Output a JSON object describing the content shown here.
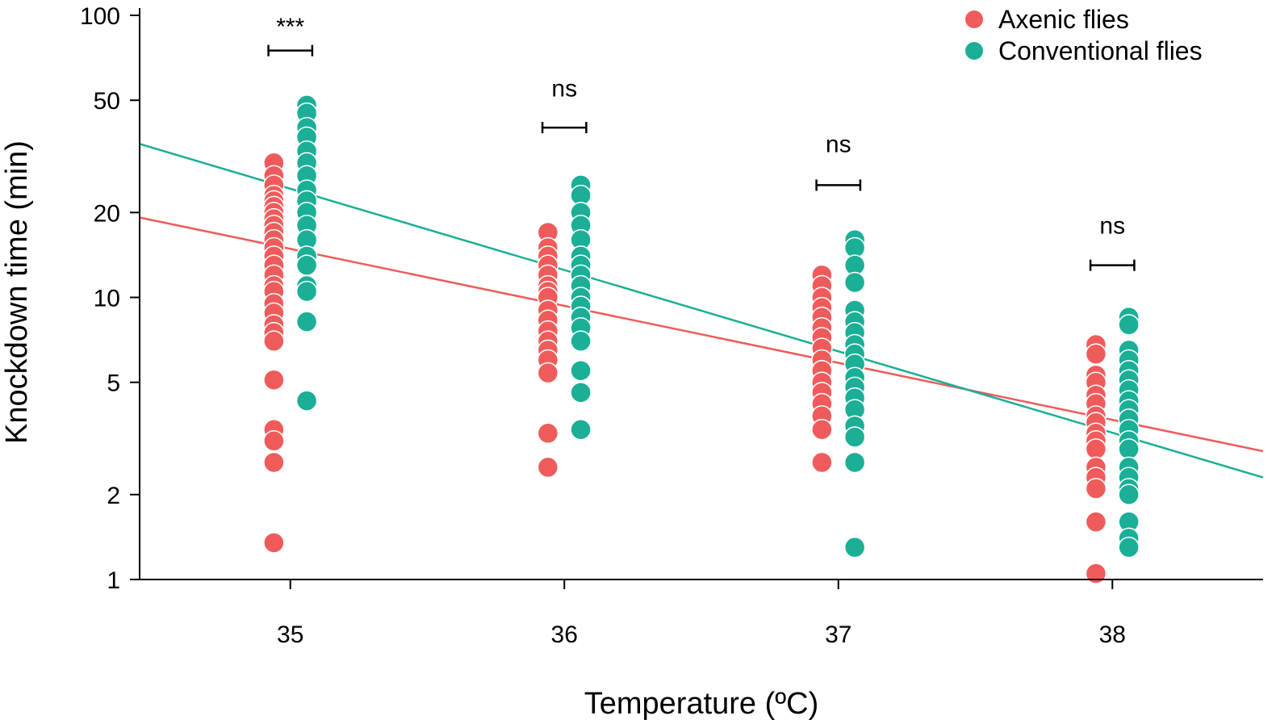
{
  "chart_data": {
    "type": "scatter",
    "title": "",
    "xlabel": "Temperature (ºC)",
    "ylabel": "Knockdown time (min)",
    "yscale": "log",
    "ylim": [
      1,
      100
    ],
    "xlim": [
      34.45,
      38.55
    ],
    "xticks": [
      35,
      36,
      37,
      38
    ],
    "yticks": [
      1,
      2,
      5,
      10,
      20,
      50,
      100
    ],
    "legend_position": "top-right",
    "series": [
      {
        "name": "Axenic flies",
        "color": "#EF5B5B",
        "x_offset": -0.06,
        "points": {
          "35": [
            30,
            27,
            25,
            23,
            22,
            21,
            20,
            19,
            18,
            17,
            16,
            15,
            14,
            13,
            12,
            11,
            10.5,
            9.5,
            8.8,
            8,
            7.5,
            7,
            5.1,
            3.4,
            3.1,
            2.6,
            1.35
          ],
          "36": [
            17,
            15,
            14,
            13,
            12,
            11,
            10.5,
            10,
            9,
            8.3,
            7.6,
            7,
            6.5,
            6,
            5.4,
            3.3,
            2.5
          ],
          "37": [
            12,
            11,
            10,
            9.2,
            8.5,
            7.8,
            7.2,
            6.6,
            6,
            5.5,
            5,
            4.6,
            4.2,
            3.8,
            3.4,
            2.6
          ],
          "38": [
            6.8,
            6.3,
            5.3,
            5,
            4.5,
            4.2,
            3.8,
            3.6,
            3.3,
            3.1,
            2.9,
            2.5,
            2.3,
            2.1,
            1.6,
            1.05
          ]
        },
        "fit": {
          "y_at_xmin": 19.2,
          "y_at_xmax": 2.85
        }
      },
      {
        "name": "Conventional flies",
        "color": "#1AAF96",
        "x_offset": 0.06,
        "points": {
          "35": [
            48,
            45,
            40,
            37,
            33,
            30,
            27,
            24,
            22,
            20,
            18,
            16,
            14,
            13,
            11,
            10.5,
            8.2,
            4.3
          ],
          "36": [
            25,
            23,
            20,
            18,
            16,
            14,
            13,
            12,
            11,
            10,
            9.3,
            8.5,
            7.8,
            7,
            5.5,
            4.6,
            3.4
          ],
          "37": [
            16,
            15,
            13,
            11.3,
            9,
            8.2,
            7.5,
            6.8,
            6.3,
            5.8,
            5.2,
            4.8,
            4.4,
            4,
            3.5,
            3.2,
            2.6,
            1.3
          ],
          "38": [
            8.5,
            8,
            6.5,
            6,
            5.5,
            5.1,
            4.7,
            4.3,
            4,
            3.7,
            3.4,
            3.1,
            2.9,
            2.5,
            2.3,
            2.1,
            2,
            1.6,
            1.4,
            1.3
          ]
        },
        "fit": {
          "y_at_xmin": 35,
          "y_at_xmax": 2.3
        }
      }
    ],
    "annotations": [
      {
        "x": 35,
        "label": "***",
        "bar_y": 75,
        "label_y": 100
      },
      {
        "x": 36,
        "label": "ns",
        "bar_y": 40,
        "label_y": 55
      },
      {
        "x": 37,
        "label": "ns",
        "bar_y": 25,
        "label_y": 35
      },
      {
        "x": 38,
        "label": "ns",
        "bar_y": 13,
        "label_y": 18
      }
    ]
  }
}
